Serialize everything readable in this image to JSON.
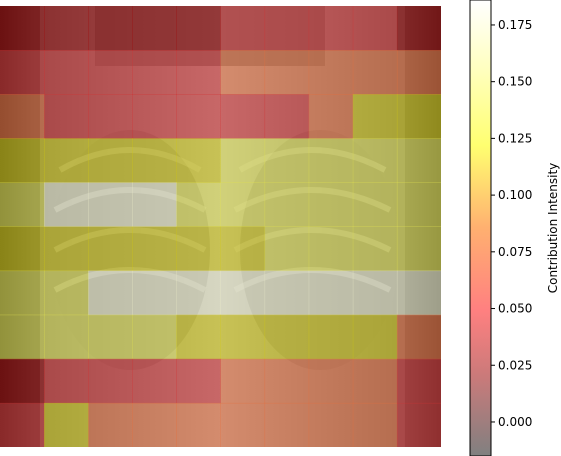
{
  "image": {
    "description_type": "chest-xray-heatmap-overlay",
    "grid_rows": 10,
    "grid_cols": 10,
    "cell_values": [
      [
        0.0,
        0.0,
        -0.01,
        0.0,
        0.0,
        0.01,
        0.01,
        0.01,
        0.01,
        0.0
      ],
      [
        0.01,
        0.03,
        0.03,
        0.03,
        0.03,
        0.08,
        0.08,
        0.08,
        0.07,
        0.08
      ],
      [
        0.06,
        0.04,
        0.03,
        0.03,
        0.03,
        0.03,
        0.04,
        0.07,
        0.1,
        0.12
      ],
      [
        0.13,
        0.13,
        0.13,
        0.13,
        0.13,
        0.14,
        0.16,
        0.16,
        0.16,
        0.16
      ],
      [
        0.16,
        0.17,
        0.18,
        0.18,
        0.16,
        0.16,
        0.15,
        0.15,
        0.15,
        0.14
      ],
      [
        0.13,
        0.13,
        0.13,
        0.13,
        0.13,
        0.13,
        0.16,
        0.16,
        0.16,
        0.16
      ],
      [
        0.16,
        0.16,
        0.17,
        0.17,
        0.18,
        0.18,
        0.18,
        0.18,
        0.17,
        0.17
      ],
      [
        0.15,
        0.14,
        0.14,
        0.14,
        0.13,
        0.11,
        0.13,
        0.13,
        0.11,
        0.07
      ],
      [
        -0.01,
        0.03,
        0.03,
        0.03,
        0.03,
        0.05,
        0.05,
        0.05,
        0.05,
        0.01
      ],
      [
        0.01,
        0.09,
        0.08,
        0.08,
        0.08,
        0.06,
        0.06,
        0.06,
        0.06,
        0.02
      ]
    ]
  },
  "colorbar": {
    "label": "Contribution Intensity",
    "min": -0.015,
    "max": 0.186,
    "ticks": [
      "0.000",
      "0.025",
      "0.050",
      "0.075",
      "0.100",
      "0.125",
      "0.150",
      "0.175"
    ],
    "tick_values": [
      0.0,
      0.025,
      0.05,
      0.075,
      0.1,
      0.125,
      0.15,
      0.175
    ],
    "colormap": [
      "#808080",
      "#e08080",
      "#ff8080",
      "#ffb070",
      "#ffff80",
      "#ffffd8",
      "#ffffff"
    ]
  }
}
